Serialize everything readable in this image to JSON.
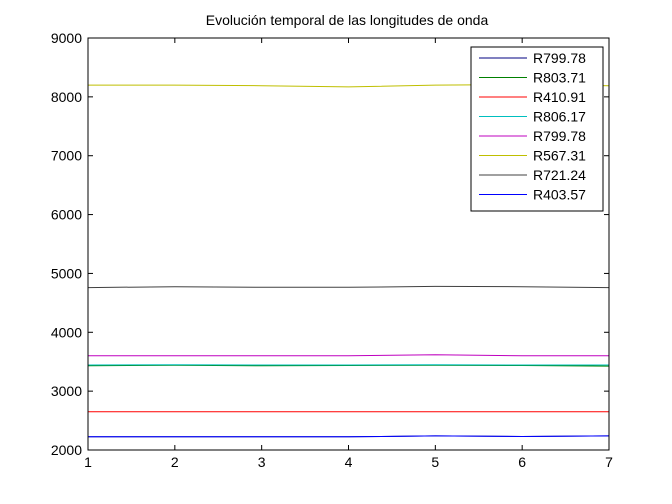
{
  "chart_data": {
    "type": "line",
    "title": "Evolución temporal de las longitudes de onda",
    "xlabel": "",
    "ylabel": "",
    "x": [
      1,
      2,
      3,
      4,
      5,
      6,
      7
    ],
    "xlim": [
      1,
      7
    ],
    "ylim": [
      2000,
      9000
    ],
    "x_ticks": [
      "1",
      "2",
      "3",
      "4",
      "5",
      "6",
      "7"
    ],
    "y_ticks": [
      "2000",
      "3000",
      "4000",
      "5000",
      "6000",
      "7000",
      "8000",
      "9000"
    ],
    "grid": false,
    "legend_position": "top-right",
    "series": [
      {
        "name": "R799.78",
        "color": "#000080",
        "values": [
          2225,
          2225,
          2225,
          2225,
          2240,
          2230,
          2240
        ]
      },
      {
        "name": "R803.71",
        "color": "#008000",
        "values": [
          3430,
          3440,
          3430,
          3435,
          3440,
          3435,
          3425
        ]
      },
      {
        "name": "R410.91",
        "color": "#ff0000",
        "values": [
          2650,
          2650,
          2650,
          2650,
          2650,
          2650,
          2650
        ]
      },
      {
        "name": "R806.17",
        "color": "#00bfbf",
        "values": [
          3445,
          3450,
          3445,
          3445,
          3450,
          3445,
          3445
        ]
      },
      {
        "name": "R799.78",
        "color": "#bf00bf",
        "values": [
          3600,
          3600,
          3600,
          3600,
          3620,
          3600,
          3600
        ]
      },
      {
        "name": "R567.31",
        "color": "#bfbf00",
        "values": [
          8200,
          8200,
          8190,
          8170,
          8200,
          8210,
          8190
        ]
      },
      {
        "name": "R721.24",
        "color": "#404040",
        "values": [
          4760,
          4775,
          4765,
          4765,
          4780,
          4775,
          4760
        ]
      },
      {
        "name": "R403.57",
        "color": "#0000ff",
        "values": [
          2225,
          2225,
          2225,
          2225,
          2240,
          2230,
          2240
        ]
      }
    ]
  }
}
